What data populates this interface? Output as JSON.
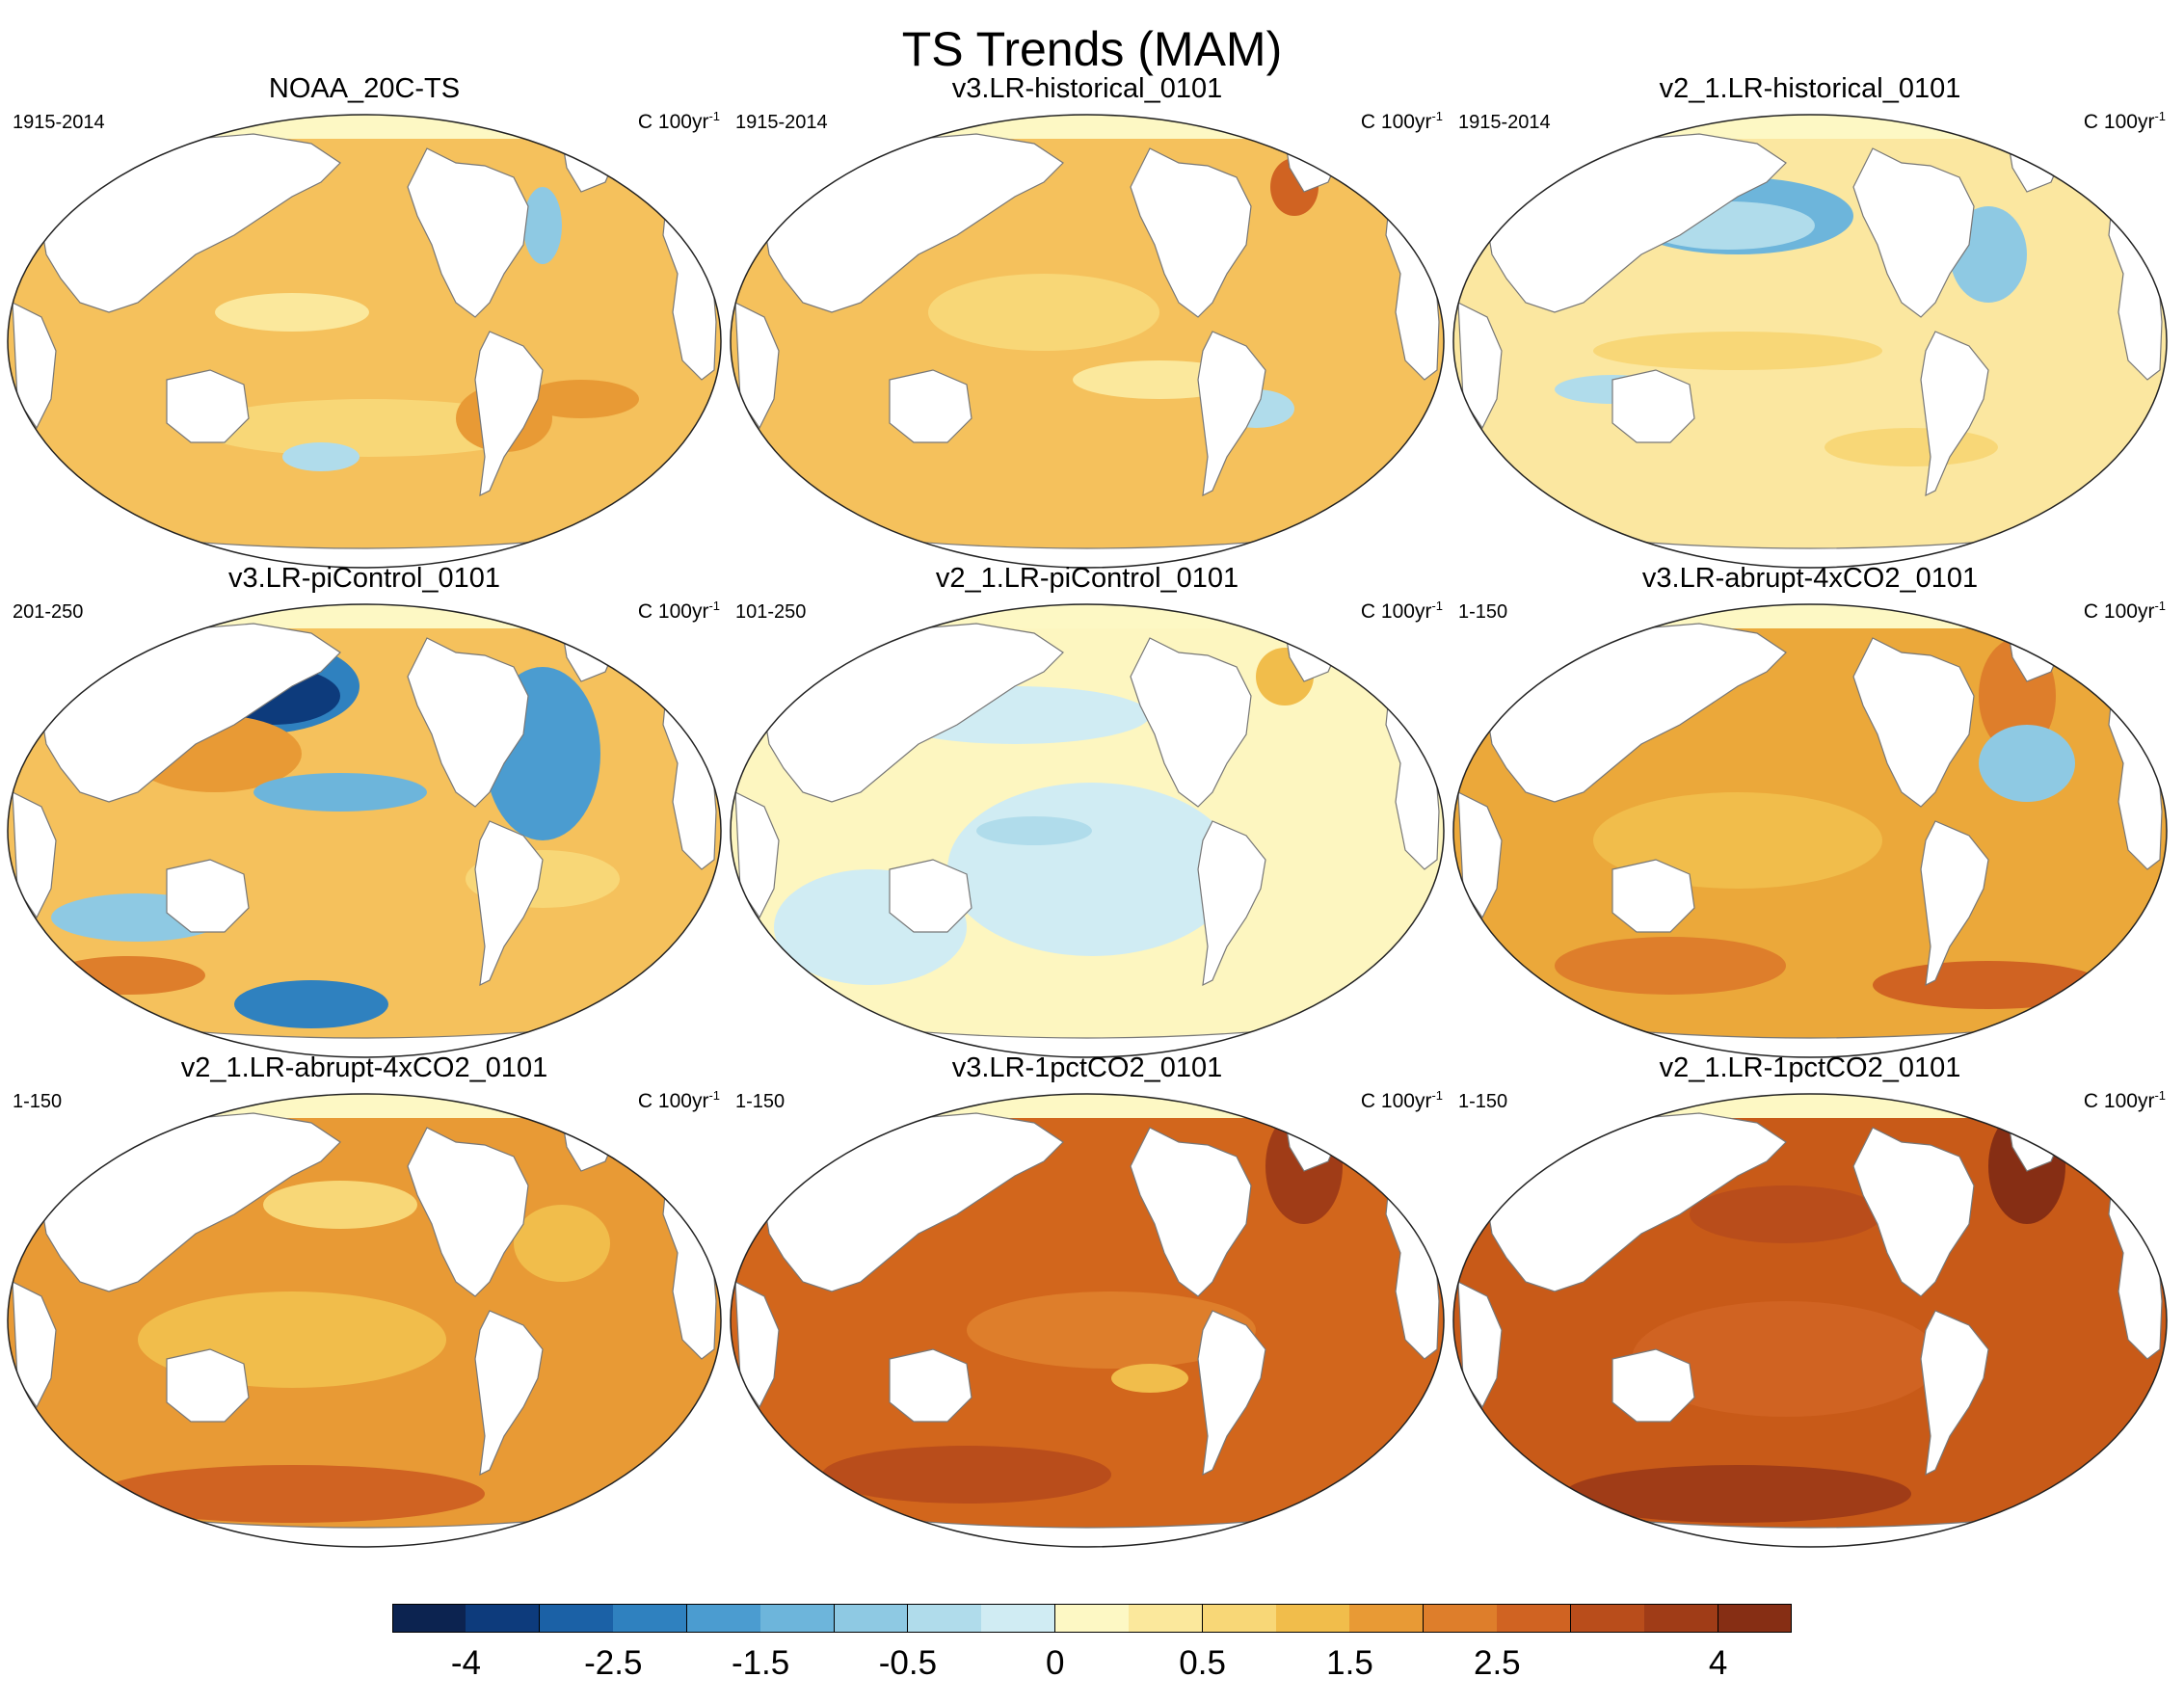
{
  "title": "TS Trends (MAM)",
  "panels": [
    {
      "title": "NOAA_20C-TS",
      "left": "1915-2014",
      "right": "C 100yr",
      "right_sup": "-1",
      "base": "#f5c15c"
    },
    {
      "title": "v3.LR-historical_0101",
      "left": "1915-2014",
      "right": "C 100yr",
      "right_sup": "-1",
      "base": "#f5c15c"
    },
    {
      "title": "v2_1.LR-historical_0101",
      "left": "1915-2014",
      "right": "C 100yr",
      "right_sup": "-1",
      "base": "#fbe7a0"
    },
    {
      "title": "v3.LR-piControl_0101",
      "left": "201-250",
      "right": "C 100yr",
      "right_sup": "-1",
      "base": "#f5c15c"
    },
    {
      "title": "v2_1.LR-piControl_0101",
      "left": "101-250",
      "right": "C 100yr",
      "right_sup": "-1",
      "base": "#fdf6c0"
    },
    {
      "title": "v3.LR-abrupt-4xCO2_0101",
      "left": "1-150",
      "right": "C 100yr",
      "right_sup": "-1",
      "base": "#eba83a"
    },
    {
      "title": "v2_1.LR-abrupt-4xCO2_0101",
      "left": "1-150",
      "right": "C 100yr",
      "right_sup": "-1",
      "base": "#e89a35"
    },
    {
      "title": "v3.LR-1pctCO2_0101",
      "left": "1-150",
      "right": "C 100yr",
      "right_sup": "-1",
      "base": "#d2661c"
    },
    {
      "title": "v2_1.LR-1pctCO2_0101",
      "left": "1-150",
      "right": "C 100yr",
      "right_sup": "-1",
      "base": "#c85a18"
    }
  ],
  "colorbar": {
    "colors": [
      "#0c2350",
      "#0d3b7c",
      "#1b61a6",
      "#2f81bf",
      "#4b9cd0",
      "#6db5db",
      "#8ec9e3",
      "#b0dceb",
      "#d0ecf3",
      "#fdf8c4",
      "#fbe89c",
      "#f8d777",
      "#f1bd4b",
      "#e89a35",
      "#de7e2b",
      "#d06322",
      "#b94d1b",
      "#a03c17",
      "#862e14"
    ],
    "labels": [
      "-4",
      "-2.5",
      "-1.5",
      "-0.5",
      "0",
      "0.5",
      "1.5",
      "2.5",
      "4"
    ],
    "label_boundary_index": [
      1,
      3,
      5,
      7,
      9,
      11,
      13,
      15,
      18
    ]
  }
}
